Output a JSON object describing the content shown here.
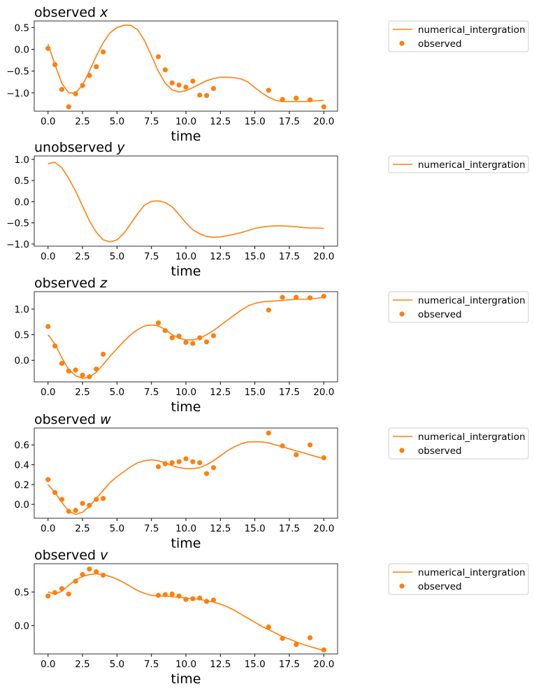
{
  "style": {
    "line_color": "#ff7f0e",
    "marker_color": "#ff7f0e",
    "axis_color": "#000000"
  },
  "chart_data": [
    {
      "type": "line",
      "title_plain": "observed ",
      "title_var": "x",
      "xlabel": "time",
      "xlim": [
        -1,
        21
      ],
      "ylim": [
        -1.42,
        0.65
      ],
      "xticks": [
        0,
        2.5,
        5,
        7.5,
        10,
        12.5,
        15,
        17.5,
        20
      ],
      "xtick_labels": [
        "0.0",
        "2.5",
        "5.0",
        "7.5",
        "10.0",
        "12.5",
        "15.0",
        "17.5",
        "20.0"
      ],
      "yticks": [
        0.5,
        0.0,
        -0.5,
        -1.0
      ],
      "ytick_labels": [
        "0.5",
        "0.0",
        "−0.5",
        "−1.0"
      ],
      "legend": [
        "numerical_intergration",
        "observed"
      ],
      "series": [
        {
          "name": "numerical_intergration",
          "kind": "line",
          "x": [
            0,
            0.5,
            1,
            1.5,
            2,
            2.5,
            3,
            3.5,
            4,
            4.5,
            5,
            5.5,
            6,
            6.5,
            7,
            7.5,
            8,
            8.5,
            9,
            9.5,
            10,
            10.5,
            11,
            11.5,
            12,
            12.5,
            13,
            13.5,
            14,
            14.5,
            15,
            15.5,
            16,
            16.5,
            17,
            17.5,
            18,
            18.5,
            19,
            19.5,
            20
          ],
          "y": [
            0.12,
            -0.35,
            -0.78,
            -1.0,
            -1.0,
            -0.82,
            -0.5,
            -0.15,
            0.15,
            0.38,
            0.5,
            0.55,
            0.55,
            0.45,
            0.2,
            -0.15,
            -0.5,
            -0.78,
            -0.93,
            -0.98,
            -0.95,
            -0.88,
            -0.8,
            -0.72,
            -0.67,
            -0.64,
            -0.64,
            -0.65,
            -0.68,
            -0.75,
            -0.88,
            -1.0,
            -1.1,
            -1.17,
            -1.2,
            -1.2,
            -1.2,
            -1.2,
            -1.19,
            -1.18,
            -1.17
          ]
        },
        {
          "name": "observed",
          "kind": "scatter",
          "x": [
            0,
            0.5,
            1,
            1.5,
            2,
            2.5,
            3,
            3.5,
            4,
            8,
            8.5,
            9,
            9.5,
            10,
            10.5,
            11,
            11.5,
            12,
            16,
            17,
            18,
            19,
            20
          ],
          "y": [
            0.02,
            -0.35,
            -0.92,
            -1.32,
            -1.02,
            -0.83,
            -0.6,
            -0.4,
            -0.06,
            -0.17,
            -0.47,
            -0.77,
            -0.82,
            -0.87,
            -0.73,
            -1.05,
            -1.06,
            -0.9,
            -0.94,
            -1.15,
            -1.12,
            -1.16,
            -1.32
          ]
        }
      ]
    },
    {
      "type": "line",
      "title_plain": "unobserved ",
      "title_var": "y",
      "xlabel": "time",
      "xlim": [
        -1,
        21
      ],
      "ylim": [
        -1.05,
        1.08
      ],
      "xticks": [
        0,
        2.5,
        5,
        7.5,
        10,
        12.5,
        15,
        17.5,
        20
      ],
      "xtick_labels": [
        "0.0",
        "2.5",
        "5.0",
        "7.5",
        "10.0",
        "12.5",
        "15.0",
        "17.5",
        "20.0"
      ],
      "yticks": [
        1.0,
        0.5,
        0.0,
        -0.5,
        -1.0
      ],
      "ytick_labels": [
        "1.0",
        "0.5",
        "0.0",
        "−0.5",
        "−1.0"
      ],
      "legend": [
        "numerical_intergration"
      ],
      "series": [
        {
          "name": "numerical_intergration",
          "kind": "line",
          "x": [
            0,
            0.5,
            1,
            1.5,
            2,
            2.5,
            3,
            3.5,
            4,
            4.5,
            5,
            5.5,
            6,
            6.5,
            7,
            7.5,
            8,
            8.5,
            9,
            9.5,
            10,
            10.5,
            11,
            11.5,
            12,
            12.5,
            13,
            13.5,
            14,
            14.5,
            15,
            15.5,
            16,
            16.5,
            17,
            17.5,
            18,
            18.5,
            19,
            19.5,
            20
          ],
          "y": [
            0.9,
            0.93,
            0.8,
            0.55,
            0.25,
            -0.1,
            -0.45,
            -0.72,
            -0.9,
            -0.95,
            -0.9,
            -0.75,
            -0.52,
            -0.28,
            -0.08,
            0.01,
            0.02,
            -0.02,
            -0.12,
            -0.3,
            -0.5,
            -0.66,
            -0.76,
            -0.82,
            -0.84,
            -0.83,
            -0.8,
            -0.77,
            -0.73,
            -0.68,
            -0.63,
            -0.6,
            -0.58,
            -0.57,
            -0.57,
            -0.58,
            -0.59,
            -0.61,
            -0.62,
            -0.62,
            -0.63
          ]
        }
      ]
    },
    {
      "type": "line",
      "title_plain": "observed ",
      "title_var": "z",
      "xlabel": "time",
      "xlim": [
        -1,
        21
      ],
      "ylim": [
        -0.42,
        1.34
      ],
      "xticks": [
        0,
        2.5,
        5,
        7.5,
        10,
        12.5,
        15,
        17.5,
        20
      ],
      "xtick_labels": [
        "0.0",
        "2.5",
        "5.0",
        "7.5",
        "10.0",
        "12.5",
        "15.0",
        "17.5",
        "20.0"
      ],
      "yticks": [
        1.0,
        0.5,
        0.0
      ],
      "ytick_labels": [
        "1.0",
        "0.5",
        "0.0"
      ],
      "legend": [
        "numerical_intergration",
        "observed"
      ],
      "series": [
        {
          "name": "numerical_intergration",
          "kind": "line",
          "x": [
            0,
            0.5,
            1,
            1.5,
            2,
            2.5,
            3,
            3.5,
            4,
            4.5,
            5,
            5.5,
            6,
            6.5,
            7,
            7.5,
            8,
            8.5,
            9,
            9.5,
            10,
            10.5,
            11,
            11.5,
            12,
            12.5,
            13,
            13.5,
            14,
            14.5,
            15,
            15.5,
            16,
            16.5,
            17,
            17.5,
            18,
            18.5,
            19,
            19.5,
            20
          ],
          "y": [
            0.5,
            0.32,
            0.05,
            -0.18,
            -0.3,
            -0.35,
            -0.33,
            -0.23,
            -0.08,
            0.08,
            0.23,
            0.37,
            0.5,
            0.6,
            0.67,
            0.69,
            0.67,
            0.6,
            0.5,
            0.43,
            0.4,
            0.4,
            0.43,
            0.5,
            0.58,
            0.68,
            0.78,
            0.88,
            0.98,
            1.06,
            1.11,
            1.14,
            1.15,
            1.16,
            1.17,
            1.18,
            1.19,
            1.19,
            1.2,
            1.21,
            1.23
          ]
        },
        {
          "name": "observed",
          "kind": "scatter",
          "x": [
            0,
            0.5,
            1,
            1.5,
            2,
            2.5,
            3,
            3.5,
            4,
            8,
            8.5,
            9,
            9.5,
            10,
            10.5,
            11,
            11.5,
            12,
            16,
            17,
            18,
            19,
            20
          ],
          "y": [
            0.66,
            0.28,
            -0.06,
            -0.21,
            -0.19,
            -0.29,
            -0.32,
            -0.17,
            0.12,
            0.73,
            0.58,
            0.44,
            0.47,
            0.35,
            0.33,
            0.44,
            0.36,
            0.48,
            0.98,
            1.23,
            1.23,
            1.22,
            1.25
          ]
        }
      ]
    },
    {
      "type": "line",
      "title_plain": "observed ",
      "title_var": "w",
      "xlabel": "time",
      "xlim": [
        -1,
        21
      ],
      "ylim": [
        -0.14,
        0.77
      ],
      "xticks": [
        0,
        2.5,
        5,
        7.5,
        10,
        12.5,
        15,
        17.5,
        20
      ],
      "xtick_labels": [
        "0.0",
        "2.5",
        "5.0",
        "7.5",
        "10.0",
        "12.5",
        "15.0",
        "17.5",
        "20.0"
      ],
      "yticks": [
        0.6,
        0.4,
        0.2,
        0.0
      ],
      "ytick_labels": [
        "0.6",
        "0.4",
        "0.2",
        "0.0"
      ],
      "legend": [
        "numerical_intergration",
        "observed"
      ],
      "series": [
        {
          "name": "numerical_intergration",
          "kind": "line",
          "x": [
            0,
            0.5,
            1,
            1.5,
            2,
            2.5,
            3,
            3.5,
            4,
            4.5,
            5,
            5.5,
            6,
            6.5,
            7,
            7.5,
            8,
            8.5,
            9,
            9.5,
            10,
            10.5,
            11,
            11.5,
            12,
            12.5,
            13,
            13.5,
            14,
            14.5,
            15,
            15.5,
            16,
            16.5,
            17,
            17.5,
            18,
            18.5,
            19,
            19.5,
            20
          ],
          "y": [
            0.2,
            0.12,
            0.02,
            -0.07,
            -0.1,
            -0.08,
            -0.02,
            0.06,
            0.14,
            0.22,
            0.28,
            0.33,
            0.38,
            0.42,
            0.44,
            0.45,
            0.44,
            0.42,
            0.39,
            0.37,
            0.36,
            0.36,
            0.37,
            0.4,
            0.44,
            0.49,
            0.54,
            0.58,
            0.61,
            0.63,
            0.63,
            0.63,
            0.62,
            0.6,
            0.58,
            0.56,
            0.54,
            0.52,
            0.5,
            0.48,
            0.46
          ]
        },
        {
          "name": "observed",
          "kind": "scatter",
          "x": [
            0,
            0.5,
            1,
            1.5,
            2,
            2.5,
            3,
            3.5,
            4,
            8,
            8.5,
            9,
            9.5,
            10,
            10.5,
            11,
            11.5,
            12,
            16,
            17,
            18,
            19,
            20
          ],
          "y": [
            0.25,
            0.12,
            0.05,
            -0.07,
            -0.06,
            0.01,
            -0.01,
            0.05,
            0.06,
            0.38,
            0.41,
            0.42,
            0.43,
            0.46,
            0.43,
            0.42,
            0.31,
            0.37,
            0.72,
            0.59,
            0.5,
            0.6,
            0.47
          ]
        }
      ]
    },
    {
      "type": "line",
      "title_plain": "observed ",
      "title_var": "v",
      "xlabel": "time",
      "xlim": [
        -1,
        21
      ],
      "ylim": [
        -0.42,
        0.92
      ],
      "xticks": [
        0,
        2.5,
        5,
        7.5,
        10,
        12.5,
        15,
        17.5,
        20
      ],
      "xtick_labels": [
        "0.0",
        "2.5",
        "5.0",
        "7.5",
        "10.0",
        "12.5",
        "15.0",
        "17.5",
        "20.0"
      ],
      "yticks": [
        0.5,
        0.0
      ],
      "ytick_labels": [
        "0.5",
        "0.0"
      ],
      "legend": [
        "numerical_intergration",
        "observed"
      ],
      "series": [
        {
          "name": "numerical_intergration",
          "kind": "line",
          "x": [
            0,
            0.5,
            1,
            1.5,
            2,
            2.5,
            3,
            3.5,
            4,
            4.5,
            5,
            5.5,
            6,
            6.5,
            7,
            7.5,
            8,
            8.5,
            9,
            9.5,
            10,
            10.5,
            11,
            11.5,
            12,
            12.5,
            13,
            13.5,
            14,
            14.5,
            15,
            15.5,
            16,
            16.5,
            17,
            17.5,
            18,
            18.5,
            19,
            19.5,
            20
          ],
          "y": [
            0.5,
            0.47,
            0.51,
            0.6,
            0.68,
            0.73,
            0.76,
            0.77,
            0.76,
            0.73,
            0.69,
            0.64,
            0.58,
            0.52,
            0.48,
            0.45,
            0.44,
            0.44,
            0.43,
            0.42,
            0.41,
            0.4,
            0.39,
            0.37,
            0.35,
            0.32,
            0.28,
            0.23,
            0.17,
            0.11,
            0.05,
            -0.01,
            -0.06,
            -0.11,
            -0.16,
            -0.2,
            -0.24,
            -0.28,
            -0.31,
            -0.34,
            -0.37
          ]
        },
        {
          "name": "observed",
          "kind": "scatter",
          "x": [
            0,
            0.5,
            1,
            1.5,
            2,
            2.5,
            3,
            3.5,
            4,
            8,
            8.5,
            9,
            9.5,
            10,
            10.5,
            11,
            11.5,
            12,
            16,
            17,
            18,
            19,
            20
          ],
          "y": [
            0.44,
            0.49,
            0.55,
            0.47,
            0.66,
            0.76,
            0.84,
            0.8,
            0.75,
            0.45,
            0.46,
            0.47,
            0.44,
            0.39,
            0.4,
            0.41,
            0.36,
            0.38,
            -0.02,
            -0.19,
            -0.28,
            -0.18,
            -0.36
          ]
        }
      ]
    }
  ]
}
